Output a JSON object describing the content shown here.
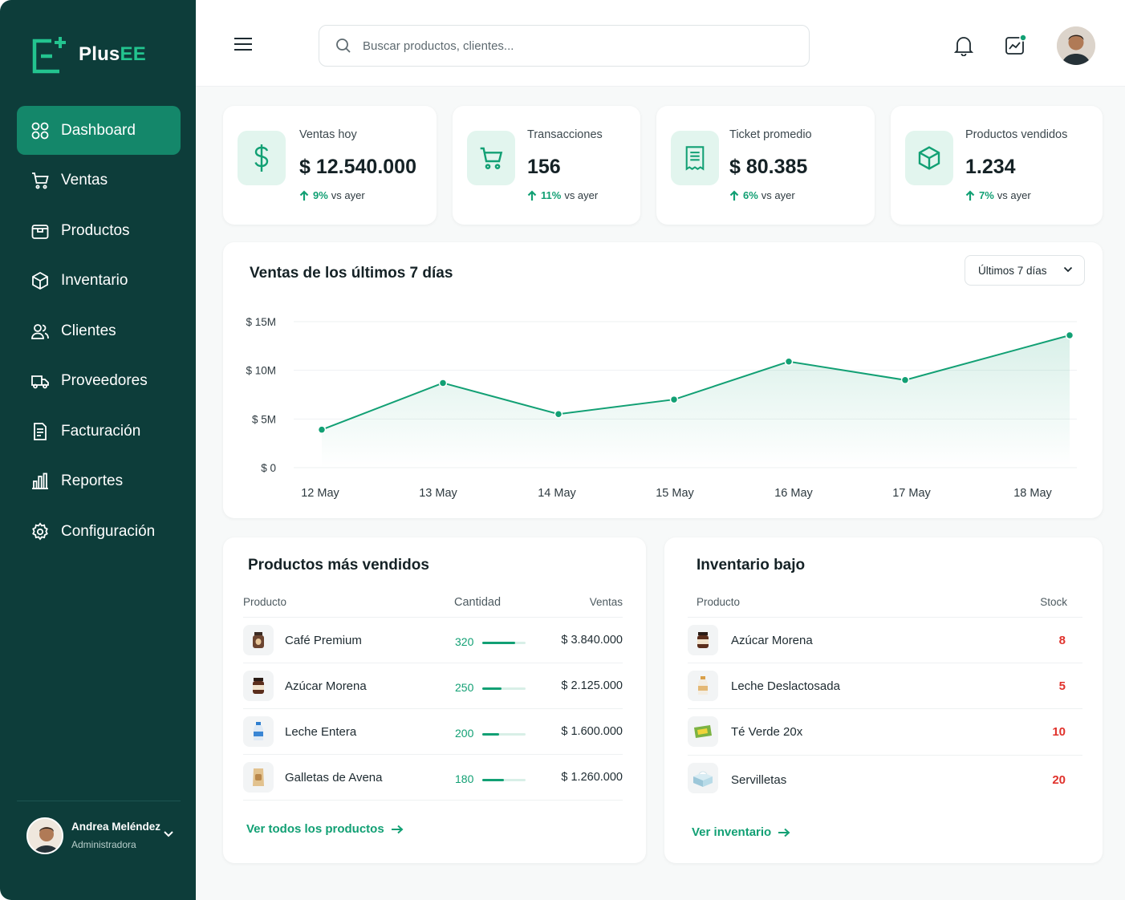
{
  "brand": {
    "name_main": "Plus",
    "name_accent": "EE"
  },
  "nav": [
    {
      "label": "Dashboard",
      "icon": "grid-icon"
    },
    {
      "label": "Ventas",
      "icon": "cart-icon"
    },
    {
      "label": "Productos",
      "icon": "box-icon"
    },
    {
      "label": "Inventario",
      "icon": "cube-icon"
    },
    {
      "label": "Clientes",
      "icon": "users-icon"
    },
    {
      "label": "Proveedores",
      "icon": "truck-icon"
    },
    {
      "label": "Facturación",
      "icon": "invoice-icon"
    },
    {
      "label": "Reportes",
      "icon": "bar-chart-icon"
    },
    {
      "label": "Configuración",
      "icon": "gear-icon"
    }
  ],
  "user": {
    "name": "Andrea Meléndez",
    "role": "Administradora"
  },
  "search": {
    "placeholder": "Buscar productos, clientes..."
  },
  "stats": [
    {
      "label": "Ventas hoy",
      "value": "$ 12.540.000",
      "change": "9%",
      "suffix": "vs ayer",
      "icon": "dollar-icon"
    },
    {
      "label": "Transacciones",
      "value": "156",
      "change": "11%",
      "suffix": "vs ayer",
      "icon": "cart-icon"
    },
    {
      "label": "Ticket promedio",
      "value": "$ 80.385",
      "change": "6%",
      "suffix": "vs ayer",
      "icon": "receipt-icon"
    },
    {
      "label": "Productos vendidos",
      "value": "1.234",
      "change": "7%",
      "suffix": "vs ayer",
      "icon": "cube-icon"
    }
  ],
  "sales_chart": {
    "title": "Ventas de los últimos 7 días",
    "range_label": "Últimos 7 días"
  },
  "chart_data": {
    "type": "area",
    "title": "Ventas de los últimos 7 días",
    "categories": [
      "12 May",
      "13 May",
      "14 May",
      "15 May",
      "16 May",
      "17 May",
      "18 May"
    ],
    "values": [
      3.9,
      8.7,
      5.5,
      7.0,
      10.9,
      9.0,
      13.6
    ],
    "unit": "M",
    "y_ticks": [
      "$ 0",
      "$ 5M",
      "$ 10M",
      "$ 15M"
    ],
    "ylim": [
      0,
      15
    ],
    "grid": true,
    "color": "#12a074"
  },
  "top_products": {
    "title": "Productos más vendidos",
    "headers": {
      "product": "Producto",
      "qty": "Cantidad",
      "sales": "Ventas"
    },
    "rows": [
      {
        "name": "Café Premium",
        "qty": "320",
        "sales": "$ 3.840.000",
        "fill": 0.75,
        "icon": "coffee-jar-icon"
      },
      {
        "name": "Azúcar Morena",
        "qty": "250",
        "sales": "$ 2.125.000",
        "fill": 0.45,
        "icon": "sugar-jar-icon"
      },
      {
        "name": "Leche Entera",
        "qty": "200",
        "sales": "$ 1.600.000",
        "fill": 0.38,
        "icon": "milk-bottle-icon"
      },
      {
        "name": "Galletas de Avena",
        "qty": "180",
        "sales": "$ 1.260.000",
        "fill": 0.5,
        "icon": "cookie-bag-icon"
      }
    ],
    "link": "Ver todos los productos"
  },
  "low_stock": {
    "title": "Inventario bajo",
    "headers": {
      "product": "Producto",
      "stock": "Stock"
    },
    "rows": [
      {
        "name": "Azúcar Morena",
        "stock": "8",
        "icon": "sugar-jar-icon"
      },
      {
        "name": "Leche Deslactosada",
        "stock": "5",
        "icon": "milk-bottle-icon"
      },
      {
        "name": "Té Verde 20x",
        "stock": "10",
        "icon": "tea-box-icon"
      },
      {
        "name": "Servilletas",
        "stock": "20",
        "icon": "napkins-icon"
      }
    ],
    "link": "Ver inventario"
  },
  "colors": {
    "sidebar": "#0d3d3a",
    "accent": "#12a074",
    "active": "#14876a",
    "danger": "#e0322c"
  }
}
